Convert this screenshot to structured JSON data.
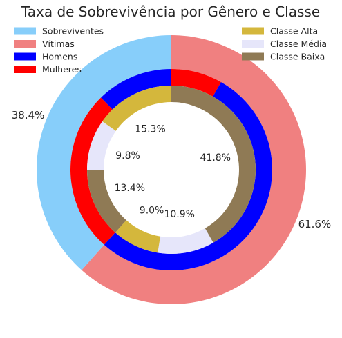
{
  "chart_data": {
    "type": "pie",
    "variant": "nested-donut",
    "title": "Taxa de Sobrevivência por Gênero e Classe",
    "start_angle_deg": 90,
    "direction": "clockwise",
    "rings": [
      {
        "name": "outer",
        "slices": [
          {
            "label": "Vítimas",
            "value": 61.6,
            "pct_label": "61.6%",
            "color": "#F08080"
          },
          {
            "label": "Sobreviventes",
            "value": 38.4,
            "pct_label": "38.4%",
            "color": "#87CEFA"
          }
        ]
      },
      {
        "name": "middle",
        "slices": [
          {
            "label": "Mulheres",
            "value": 8.2,
            "color": "#FF0000"
          },
          {
            "label": "Homens",
            "value": 53.4,
            "color": "#0000FF"
          },
          {
            "label": "Mulheres",
            "value": 26.1,
            "color": "#FF0000"
          },
          {
            "label": "Homens",
            "value": 12.3,
            "color": "#0000FF"
          }
        ]
      },
      {
        "name": "inner",
        "slices": [
          {
            "label": "Classe Baixa",
            "value": 41.8,
            "pct_label": "41.8%",
            "color": "#8F7A55"
          },
          {
            "label": "Classe Média",
            "value": 10.9,
            "pct_label": "10.9%",
            "color": "#E6E6FA"
          },
          {
            "label": "Classe Alta",
            "value": 9.0,
            "pct_label": "9.0%",
            "color": "#D4B73C"
          },
          {
            "label": "Classe Baixa",
            "value": 13.4,
            "pct_label": "13.4%",
            "color": "#8F7A55"
          },
          {
            "label": "Classe Média",
            "value": 9.8,
            "pct_label": "9.8%",
            "color": "#E6E6FA"
          },
          {
            "label": "Classe Alta",
            "value": 15.3,
            "pct_label": "15.3%",
            "color": "#D4B73C"
          }
        ]
      }
    ],
    "legend": {
      "left_placement": "top-left",
      "right_placement": "top-right",
      "left": [
        {
          "label": "Sobreviventes",
          "color": "#87CEFA"
        },
        {
          "label": "Vítimas",
          "color": "#F08080"
        },
        {
          "label": "Homens",
          "color": "#0000FF"
        },
        {
          "label": "Mulheres",
          "color": "#FF0000"
        }
      ],
      "right": [
        {
          "label": "Classe Alta",
          "color": "#D4B73C"
        },
        {
          "label": "Classe Média",
          "color": "#E6E6FA"
        },
        {
          "label": "Classe Baixa",
          "color": "#8F7A55"
        }
      ]
    }
  }
}
